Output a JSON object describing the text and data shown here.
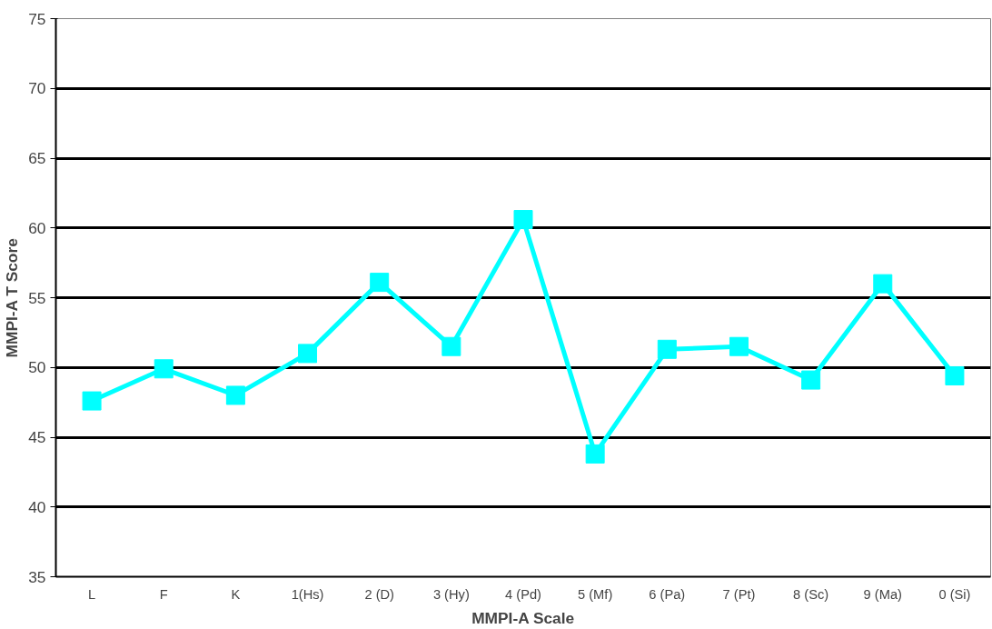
{
  "chart_data": {
    "type": "line",
    "xlabel": "MMPI-A Scale",
    "ylabel": "MMPI-A T Score",
    "categories": [
      "L",
      "F",
      "K",
      "1(Hs)",
      "2 (D)",
      "3 (Hy)",
      "4 (Pd)",
      "5 (Mf)",
      "6 (Pa)",
      "7 (Pt)",
      "8 (Sc)",
      "9 (Ma)",
      "0 (Si)"
    ],
    "series": [
      {
        "color": "#00ffff",
        "values": [
          47.6,
          49.9,
          48.0,
          51.0,
          56.1,
          51.5,
          60.6,
          43.8,
          51.3,
          51.5,
          49.1,
          56.0,
          49.4
        ]
      }
    ],
    "ylim": [
      35,
      75
    ],
    "yticks": [
      35,
      40,
      45,
      50,
      55,
      60,
      65,
      70,
      75
    ],
    "grid": "y",
    "marker": "square",
    "line_style": "solid"
  }
}
